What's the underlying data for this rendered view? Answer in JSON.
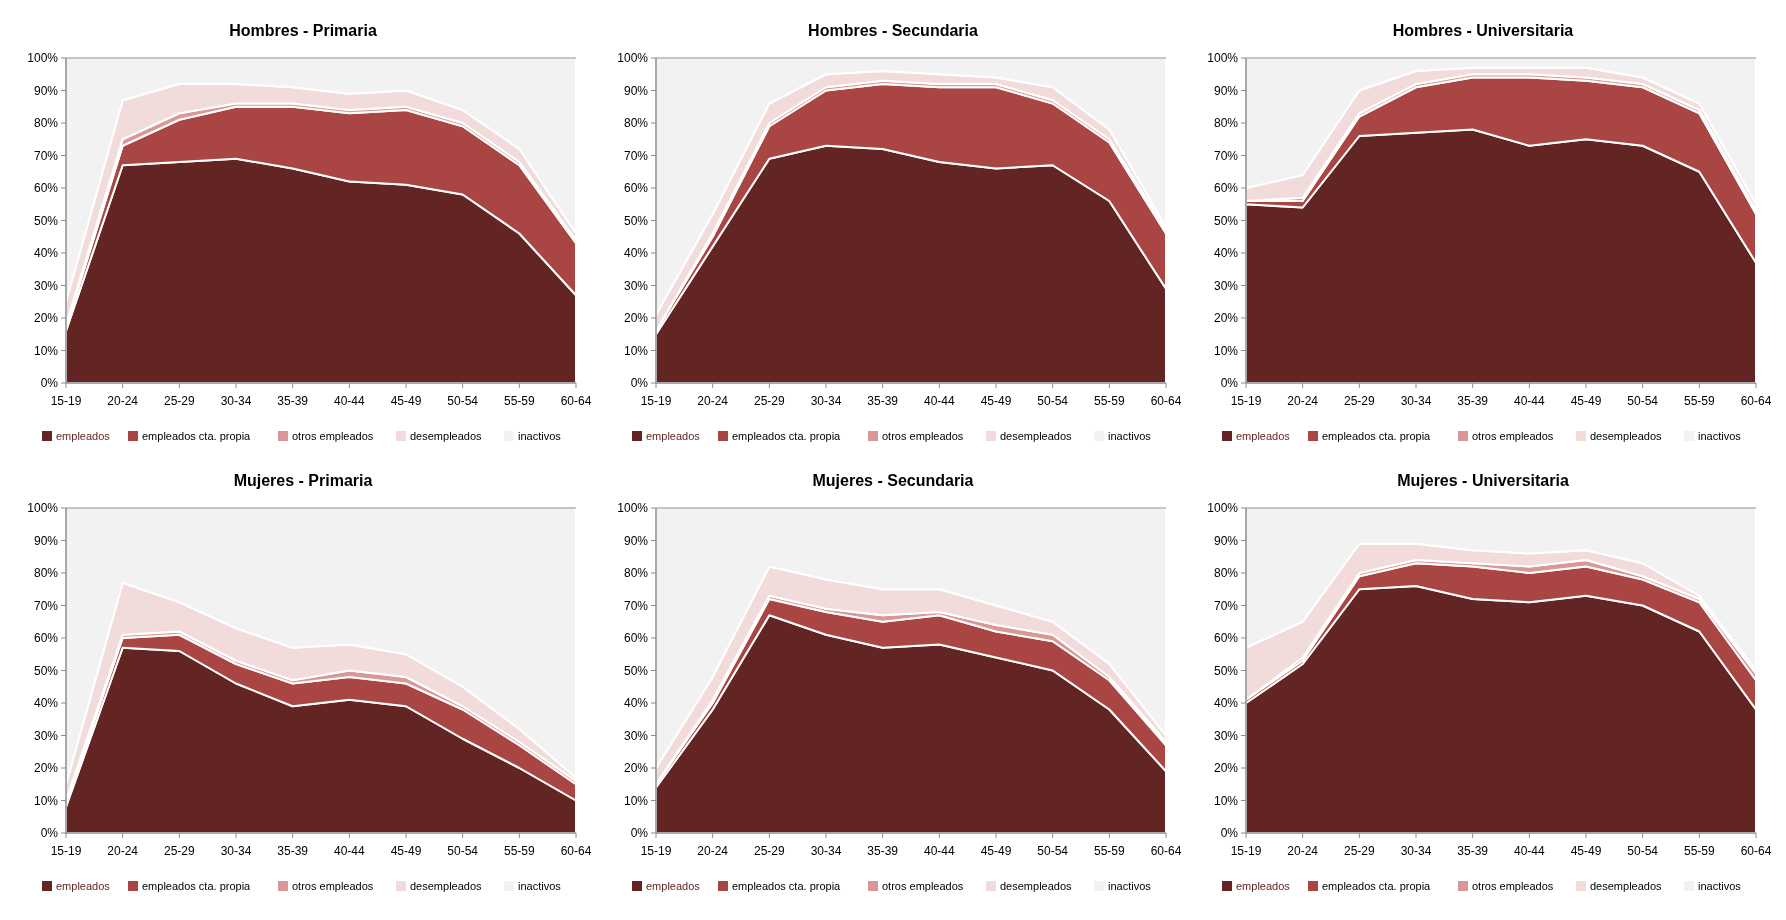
{
  "chart_data": [
    {
      "type": "area",
      "title": "Hombres - Primaria",
      "stacked": true,
      "categories": [
        "15-19",
        "20-24",
        "25-29",
        "30-34",
        "35-39",
        "40-44",
        "45-49",
        "50-54",
        "55-59",
        "60-64"
      ],
      "ylim": [
        0,
        100
      ],
      "yticks": [
        {
          "value": 0,
          "label": "0%"
        },
        {
          "value": 10,
          "label": "10%"
        },
        {
          "value": 20,
          "label": "20%"
        },
        {
          "value": 30,
          "label": "30%"
        },
        {
          "value": 40,
          "label": "40%"
        },
        {
          "value": 50,
          "label": "50%"
        },
        {
          "value": 60,
          "label": "60%"
        },
        {
          "value": 70,
          "label": "70%"
        },
        {
          "value": 80,
          "label": "80%"
        },
        {
          "value": 90,
          "label": "90%"
        },
        {
          "value": 100,
          "label": "100%"
        }
      ],
      "legend": "bottom",
      "series": [
        {
          "name": "empleados",
          "color": "#632523",
          "values": [
            16,
            67,
            68,
            69,
            66,
            62,
            61,
            58,
            46,
            27
          ]
        },
        {
          "name": "empleados cta. propia",
          "color": "#a94543",
          "values": [
            1,
            6,
            13,
            16,
            19,
            21,
            23,
            21,
            21,
            16
          ]
        },
        {
          "name": "otros empleados",
          "color": "#d99795",
          "values": [
            1,
            2,
            2,
            1,
            1,
            1,
            1,
            1,
            1,
            1
          ]
        },
        {
          "name": "desempleados",
          "color": "#f2dcdb",
          "values": [
            7,
            12,
            9,
            6,
            5,
            5,
            5,
            4,
            4,
            2
          ]
        },
        {
          "name": "inactivos",
          "color": "#f2f2f2",
          "values": [
            75,
            13,
            8,
            8,
            9,
            11,
            10,
            16,
            28,
            54
          ]
        }
      ]
    },
    {
      "type": "area",
      "title": "Hombres - Secundaria",
      "stacked": true,
      "categories": [
        "15-19",
        "20-24",
        "25-29",
        "30-34",
        "35-39",
        "40-44",
        "45-49",
        "50-54",
        "55-59",
        "60-64"
      ],
      "ylim": [
        0,
        100
      ],
      "yticks": [
        {
          "value": 0,
          "label": "0%"
        },
        {
          "value": 10,
          "label": "10%"
        },
        {
          "value": 20,
          "label": "20%"
        },
        {
          "value": 30,
          "label": "30%"
        },
        {
          "value": 40,
          "label": "40%"
        },
        {
          "value": 50,
          "label": "50%"
        },
        {
          "value": 60,
          "label": "60%"
        },
        {
          "value": 70,
          "label": "70%"
        },
        {
          "value": 80,
          "label": "80%"
        },
        {
          "value": 90,
          "label": "90%"
        },
        {
          "value": 100,
          "label": "100%"
        }
      ],
      "legend": "bottom",
      "series": [
        {
          "name": "empleados",
          "color": "#632523",
          "values": [
            15,
            42,
            69,
            73,
            72,
            68,
            66,
            67,
            56,
            29
          ]
        },
        {
          "name": "empleados cta. propia",
          "color": "#a94543",
          "values": [
            1,
            3,
            10,
            17,
            20,
            23,
            25,
            19,
            18,
            17
          ]
        },
        {
          "name": "otros empleados",
          "color": "#d99795",
          "values": [
            0,
            1,
            1,
            1,
            1,
            1,
            1,
            1,
            1,
            1
          ]
        },
        {
          "name": "desempleados",
          "color": "#f2dcdb",
          "values": [
            5,
            6,
            6,
            4,
            3,
            3,
            2,
            4,
            3,
            1
          ]
        },
        {
          "name": "inactivos",
          "color": "#f2f2f2",
          "values": [
            79,
            48,
            14,
            5,
            4,
            5,
            6,
            9,
            22,
            52
          ]
        }
      ]
    },
    {
      "type": "area",
      "title": "Hombres - Universitaria",
      "stacked": true,
      "categories": [
        "15-19",
        "20-24",
        "25-29",
        "30-34",
        "35-39",
        "40-44",
        "45-49",
        "50-54",
        "55-59",
        "60-64"
      ],
      "ylim": [
        0,
        100
      ],
      "yticks": [
        {
          "value": 0,
          "label": "0%"
        },
        {
          "value": 10,
          "label": "10%"
        },
        {
          "value": 20,
          "label": "20%"
        },
        {
          "value": 30,
          "label": "30%"
        },
        {
          "value": 40,
          "label": "40%"
        },
        {
          "value": 50,
          "label": "50%"
        },
        {
          "value": 60,
          "label": "60%"
        },
        {
          "value": 70,
          "label": "70%"
        },
        {
          "value": 80,
          "label": "80%"
        },
        {
          "value": 90,
          "label": "90%"
        },
        {
          "value": 100,
          "label": "100%"
        }
      ],
      "legend": "bottom",
      "series": [
        {
          "name": "empleados",
          "color": "#632523",
          "values": [
            55,
            54,
            76,
            77,
            78,
            73,
            75,
            73,
            65,
            37
          ]
        },
        {
          "name": "empleados cta. propia",
          "color": "#a94543",
          "values": [
            1,
            2,
            6,
            14,
            16,
            21,
            18,
            18,
            18,
            15
          ]
        },
        {
          "name": "otros empleados",
          "color": "#d99795",
          "values": [
            0,
            1,
            1,
            1,
            1,
            1,
            1,
            1,
            1,
            1
          ]
        },
        {
          "name": "desempleados",
          "color": "#f2dcdb",
          "values": [
            4,
            7,
            7,
            4,
            2,
            2,
            3,
            2,
            2,
            2
          ]
        },
        {
          "name": "inactivos",
          "color": "#f2f2f2",
          "values": [
            40,
            36,
            10,
            4,
            3,
            3,
            3,
            6,
            14,
            45
          ]
        }
      ]
    },
    {
      "type": "area",
      "title": "Mujeres - Primaria",
      "stacked": true,
      "categories": [
        "15-19",
        "20-24",
        "25-29",
        "30-34",
        "35-39",
        "40-44",
        "45-49",
        "50-54",
        "55-59",
        "60-64"
      ],
      "ylim": [
        0,
        100
      ],
      "yticks": [
        {
          "value": 0,
          "label": "0%"
        },
        {
          "value": 10,
          "label": "10%"
        },
        {
          "value": 20,
          "label": "20%"
        },
        {
          "value": 30,
          "label": "30%"
        },
        {
          "value": 40,
          "label": "40%"
        },
        {
          "value": 50,
          "label": "50%"
        },
        {
          "value": 60,
          "label": "60%"
        },
        {
          "value": 70,
          "label": "70%"
        },
        {
          "value": 80,
          "label": "80%"
        },
        {
          "value": 90,
          "label": "90%"
        },
        {
          "value": 100,
          "label": "100%"
        }
      ],
      "legend": "bottom",
      "series": [
        {
          "name": "empleados",
          "color": "#632523",
          "values": [
            8,
            57,
            56,
            46,
            39,
            41,
            39,
            29,
            20,
            10
          ]
        },
        {
          "name": "empleados cta. propia",
          "color": "#a94543",
          "values": [
            1,
            3,
            5,
            6,
            7,
            7,
            7,
            9,
            7,
            5
          ]
        },
        {
          "name": "otros empleados",
          "color": "#d99795",
          "values": [
            1,
            1,
            1,
            1,
            1,
            2,
            2,
            1,
            1,
            1
          ]
        },
        {
          "name": "desempleados",
          "color": "#f2dcdb",
          "values": [
            5,
            16,
            9,
            10,
            10,
            8,
            7,
            6,
            4,
            1
          ]
        },
        {
          "name": "inactivos",
          "color": "#f2f2f2",
          "values": [
            85,
            23,
            29,
            37,
            43,
            42,
            45,
            55,
            68,
            83
          ]
        }
      ]
    },
    {
      "type": "area",
      "title": "Mujeres - Secundaria",
      "stacked": true,
      "categories": [
        "15-19",
        "20-24",
        "25-29",
        "30-34",
        "35-39",
        "40-44",
        "45-49",
        "50-54",
        "55-59",
        "60-64"
      ],
      "ylim": [
        0,
        100
      ],
      "yticks": [
        {
          "value": 0,
          "label": "0%"
        },
        {
          "value": 10,
          "label": "10%"
        },
        {
          "value": 20,
          "label": "20%"
        },
        {
          "value": 30,
          "label": "30%"
        },
        {
          "value": 40,
          "label": "40%"
        },
        {
          "value": 50,
          "label": "50%"
        },
        {
          "value": 60,
          "label": "60%"
        },
        {
          "value": 70,
          "label": "70%"
        },
        {
          "value": 80,
          "label": "80%"
        },
        {
          "value": 90,
          "label": "90%"
        },
        {
          "value": 100,
          "label": "100%"
        }
      ],
      "legend": "bottom",
      "series": [
        {
          "name": "empleados",
          "color": "#632523",
          "values": [
            14,
            38,
            67,
            61,
            57,
            58,
            54,
            50,
            38,
            19
          ]
        },
        {
          "name": "empleados cta. propia",
          "color": "#a94543",
          "values": [
            1,
            2,
            5,
            7,
            8,
            9,
            8,
            9,
            9,
            8
          ]
        },
        {
          "name": "otros empleados",
          "color": "#d99795",
          "values": [
            0,
            1,
            1,
            1,
            2,
            1,
            2,
            2,
            1,
            1
          ]
        },
        {
          "name": "desempleados",
          "color": "#f2dcdb",
          "values": [
            5,
            7,
            9,
            9,
            8,
            7,
            6,
            4,
            4,
            2
          ]
        },
        {
          "name": "inactivos",
          "color": "#f2f2f2",
          "values": [
            80,
            52,
            18,
            22,
            25,
            25,
            30,
            35,
            48,
            70
          ]
        }
      ]
    },
    {
      "type": "area",
      "title": "Mujeres - Universitaria",
      "stacked": true,
      "categories": [
        "15-19",
        "20-24",
        "25-29",
        "30-34",
        "35-39",
        "40-44",
        "45-49",
        "50-54",
        "55-59",
        "60-64"
      ],
      "ylim": [
        0,
        100
      ],
      "yticks": [
        {
          "value": 0,
          "label": "0%"
        },
        {
          "value": 10,
          "label": "10%"
        },
        {
          "value": 20,
          "label": "20%"
        },
        {
          "value": 30,
          "label": "30%"
        },
        {
          "value": 40,
          "label": "40%"
        },
        {
          "value": 50,
          "label": "50%"
        },
        {
          "value": 60,
          "label": "60%"
        },
        {
          "value": 70,
          "label": "70%"
        },
        {
          "value": 80,
          "label": "80%"
        },
        {
          "value": 90,
          "label": "90%"
        },
        {
          "value": 100,
          "label": "100%"
        }
      ],
      "legend": "bottom",
      "series": [
        {
          "name": "empleados",
          "color": "#632523",
          "values": [
            40,
            52,
            75,
            76,
            72,
            71,
            73,
            70,
            62,
            38
          ]
        },
        {
          "name": "empleados cta. propia",
          "color": "#a94543",
          "values": [
            1,
            1,
            4,
            7,
            10,
            9,
            9,
            8,
            9,
            9
          ]
        },
        {
          "name": "otros empleados",
          "color": "#d99795",
          "values": [
            0,
            1,
            1,
            1,
            1,
            2,
            2,
            1,
            1,
            2
          ]
        },
        {
          "name": "desempleados",
          "color": "#f2dcdb",
          "values": [
            16,
            11,
            9,
            5,
            4,
            4,
            3,
            4,
            1,
            1
          ]
        },
        {
          "name": "inactivos",
          "color": "#f2f2f2",
          "values": [
            43,
            35,
            11,
            11,
            13,
            14,
            13,
            17,
            27,
            50
          ]
        }
      ]
    }
  ]
}
